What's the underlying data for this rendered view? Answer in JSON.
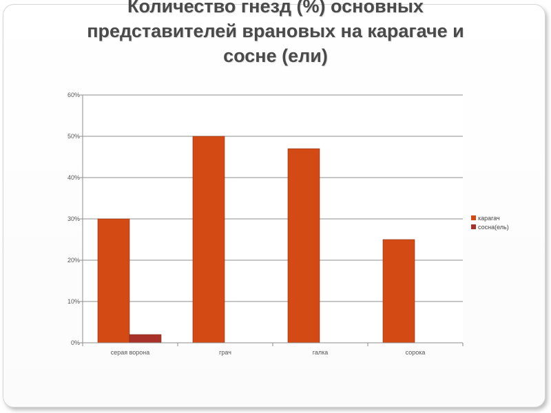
{
  "slide": {
    "title_lines": [
      "Количество гнезд (%) основных",
      "представителей врановых на карагаче и",
      "сосне (ели)"
    ]
  },
  "chart_data": {
    "type": "bar",
    "title": "",
    "xlabel": "",
    "ylabel": "",
    "categories": [
      "серая ворона",
      "грач",
      "галка",
      "сорока"
    ],
    "series": [
      {
        "name": "карагач",
        "values": [
          30,
          50,
          47,
          25
        ],
        "color": "#d34a15"
      },
      {
        "name": "сосна(ель)",
        "values": [
          2,
          0,
          0,
          0
        ],
        "color": "#a8322a"
      }
    ],
    "ylim": [
      0,
      60
    ],
    "yticks": [
      0,
      10,
      20,
      30,
      40,
      50,
      60
    ],
    "ytick_format": "{v}%",
    "grid": true,
    "legend": "right"
  }
}
